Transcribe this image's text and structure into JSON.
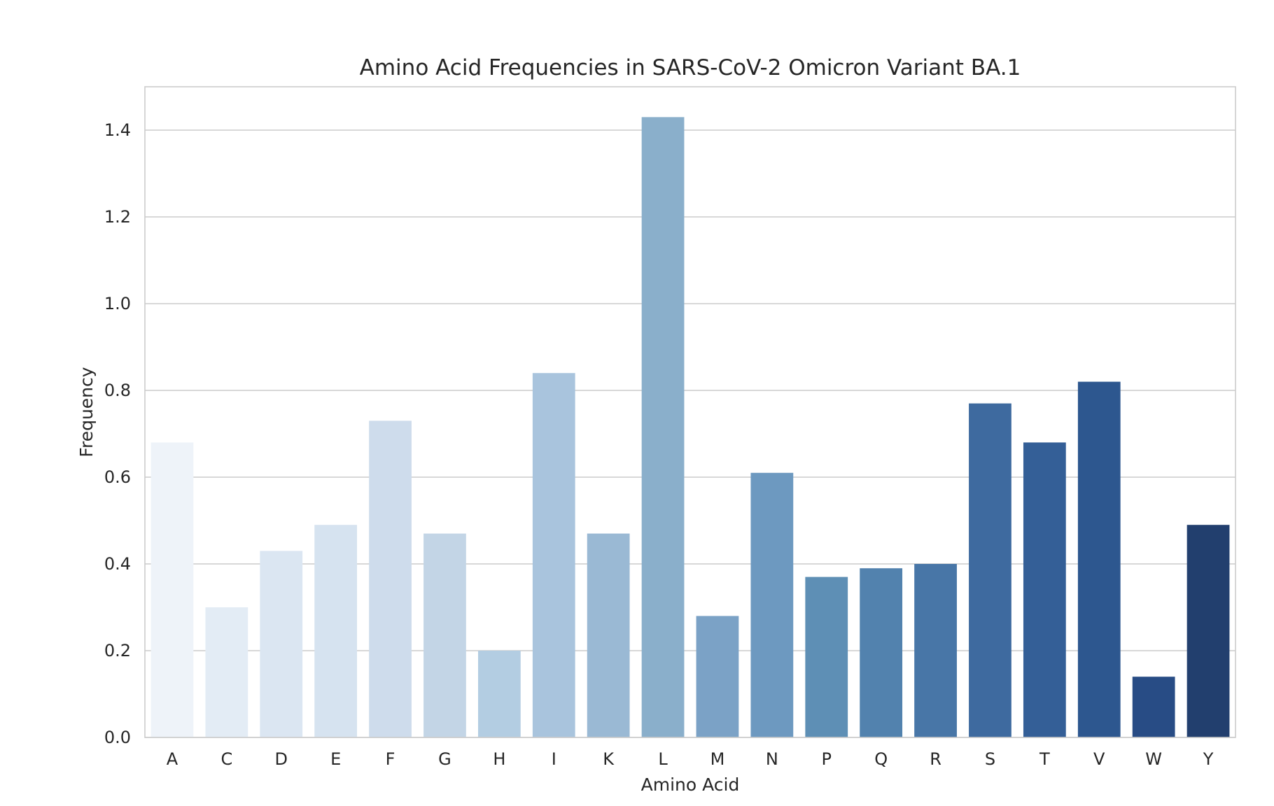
{
  "chart_data": {
    "type": "bar",
    "title": "Amino Acid Frequencies in SARS-CoV-2 Omicron Variant BA.1",
    "xlabel": "Amino Acid",
    "ylabel": "Frequency",
    "categories": [
      "A",
      "C",
      "D",
      "E",
      "F",
      "G",
      "H",
      "I",
      "K",
      "L",
      "M",
      "N",
      "P",
      "Q",
      "R",
      "S",
      "T",
      "V",
      "W",
      "Y"
    ],
    "values": [
      0.68,
      0.3,
      0.43,
      0.49,
      0.73,
      0.47,
      0.2,
      0.84,
      0.47,
      1.43,
      0.28,
      0.61,
      0.37,
      0.39,
      0.4,
      0.77,
      0.68,
      0.82,
      0.14,
      0.49
    ],
    "colors": [
      "#eef3f9",
      "#e3ecf5",
      "#dbe6f2",
      "#d6e3f0",
      "#cedcec",
      "#c3d5e6",
      "#b3cde2",
      "#a9c4dd",
      "#9ab9d4",
      "#8aafcb",
      "#7ba2c6",
      "#6d99c0",
      "#5e8fb5",
      "#5282ae",
      "#4876a7",
      "#3e6a9f",
      "#345f97",
      "#2d578f",
      "#284c85",
      "#223f6e"
    ],
    "yticks": [
      "0.0",
      "0.2",
      "0.4",
      "0.6",
      "0.8",
      "1.0",
      "1.2",
      "1.4"
    ],
    "ylim": [
      0,
      1.5
    ],
    "grid": true,
    "grid_axis": "y",
    "legend": "none"
  }
}
